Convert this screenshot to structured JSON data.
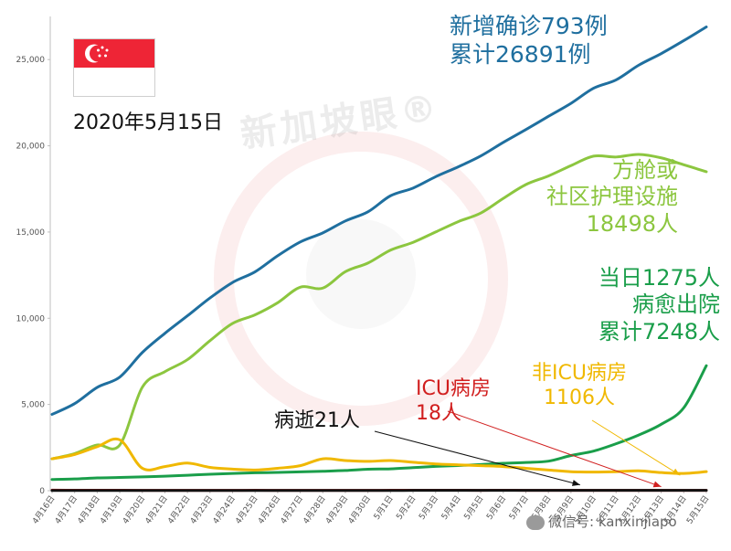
{
  "header": {
    "date": "2020年5月15日"
  },
  "watermark": "新加坡眼®",
  "footer": {
    "wechat_text": "微信号: kanxinjiapo"
  },
  "annotations": {
    "confirmed": [
      "新增确诊793例",
      "累计26891例"
    ],
    "community": [
      "方舱或",
      "社区护理设施",
      "18498人"
    ],
    "discharged": [
      "当日1275人",
      "病愈出院",
      "累计7248人"
    ],
    "non_icu": [
      "非ICU病房",
      "1106人"
    ],
    "icu": [
      "ICU病房",
      "18人"
    ],
    "deaths": [
      "病逝21人"
    ]
  },
  "colors": {
    "confirmed": "#1f6f9f",
    "community": "#8cc63f",
    "discharged": "#1a9e4a",
    "non_icu": "#f0b800",
    "icu": "#d11f1f",
    "deaths": "#111111"
  },
  "chart_data": {
    "type": "line",
    "categories": [
      "4月16日",
      "4月17日",
      "4月18日",
      "4月19日",
      "4月20日",
      "4月21日",
      "4月22日",
      "4月23日",
      "4月24日",
      "4月25日",
      "4月26日",
      "4月27日",
      "4月28日",
      "4月29日",
      "4月30日",
      "5月1日",
      "5月2日",
      "5月3日",
      "5月4日",
      "5月5日",
      "5月6日",
      "5月7日",
      "5月8日",
      "5月9日",
      "5月10日",
      "5月11日",
      "5月12日",
      "5月13日",
      "5月14日",
      "5月15日"
    ],
    "ylim": [
      0,
      27500
    ],
    "yticks": [
      0,
      5000,
      10000,
      15000,
      20000,
      25000
    ],
    "ytick_labels": [
      "0",
      "5,000",
      "10,000",
      "15,000",
      "20,000",
      "25,000"
    ],
    "grid": false,
    "series": [
      {
        "key": "confirmed",
        "values": [
          4427,
          5050,
          5992,
          6588,
          8014,
          9125,
          10141,
          11178,
          12075,
          12693,
          13624,
          14423,
          14951,
          15641,
          16169,
          17101,
          17548,
          18205,
          18778,
          19410,
          20198,
          20939,
          21707,
          22460,
          23336,
          23822,
          24671,
          25346,
          26098,
          26891
        ]
      },
      {
        "key": "community",
        "values": [
          1850,
          2150,
          2650,
          2650,
          6000,
          6900,
          7600,
          8700,
          9700,
          10200,
          10900,
          11800,
          11750,
          12700,
          13200,
          13950,
          14400,
          15000,
          15600,
          16100,
          16950,
          17750,
          18250,
          18850,
          19400,
          19350,
          19500,
          19300,
          18900,
          18498
        ]
      },
      {
        "key": "discharged",
        "values": [
          652,
          683,
          740,
          768,
          801,
          839,
          896,
          956,
          1002,
          1038,
          1060,
          1095,
          1128,
          1170,
          1244,
          1268,
          1339,
          1408,
          1457,
          1519,
          1588,
          1634,
          1712,
          2040,
          2296,
          2721,
          3225,
          3851,
          4809,
          7248
        ]
      },
      {
        "key": "non_icu",
        "values": [
          1850,
          2100,
          2550,
          2950,
          1300,
          1400,
          1600,
          1350,
          1250,
          1200,
          1300,
          1450,
          1850,
          1750,
          1700,
          1750,
          1650,
          1550,
          1500,
          1450,
          1400,
          1300,
          1200,
          1100,
          1080,
          1100,
          1150,
          1050,
          1000,
          1106
        ]
      },
      {
        "key": "icu",
        "values": [
          31,
          29,
          29,
          25,
          23,
          23,
          22,
          22,
          22,
          24,
          22,
          21,
          20,
          20,
          20,
          24,
          25,
          24,
          24,
          23,
          24,
          23,
          22,
          22,
          20,
          19,
          18,
          18,
          18,
          18
        ]
      },
      {
        "key": "deaths",
        "values": [
          10,
          11,
          11,
          11,
          11,
          12,
          12,
          12,
          12,
          12,
          12,
          14,
          14,
          14,
          15,
          15,
          17,
          18,
          18,
          18,
          18,
          18,
          20,
          20,
          20,
          20,
          20,
          21,
          21,
          21
        ]
      }
    ]
  }
}
